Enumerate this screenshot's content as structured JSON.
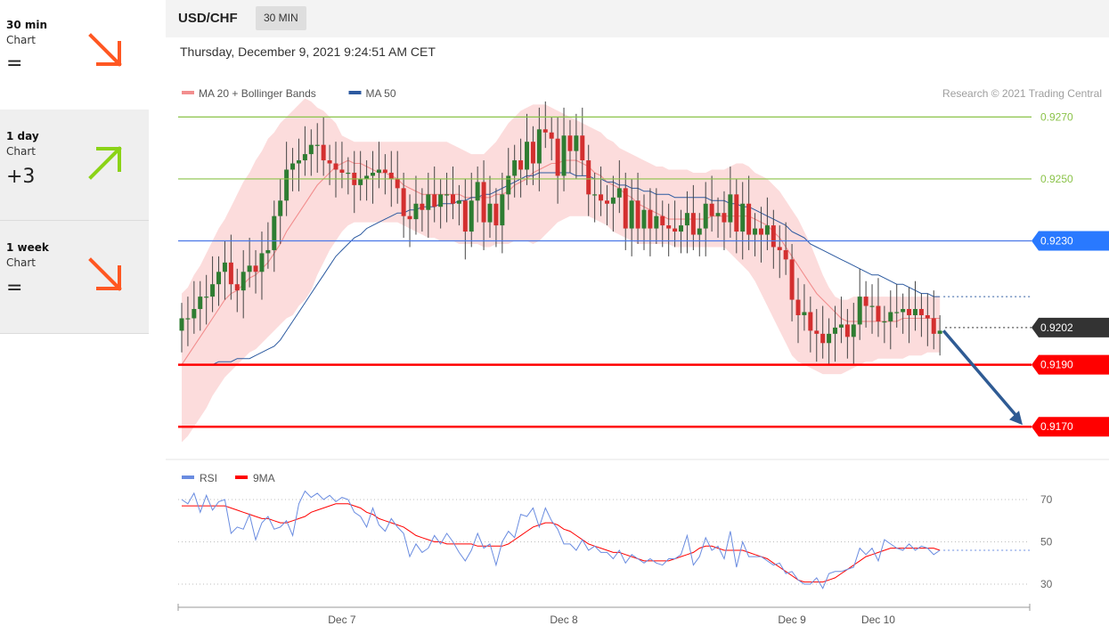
{
  "sidebar": {
    "items": [
      {
        "label": "30 min",
        "sub": "Chart",
        "score": "=",
        "direction": "down",
        "color": "#ff5722"
      },
      {
        "label": "1 day",
        "sub": "Chart",
        "score": "+3",
        "direction": "up",
        "color": "#8bd317"
      },
      {
        "label": "1 week",
        "sub": "Chart",
        "score": "=",
        "direction": "down",
        "color": "#ff5722"
      }
    ]
  },
  "header": {
    "symbol": "USD/CHF",
    "timeframe": "30 MIN"
  },
  "timestamp": "Thursday, December 9, 2021 9:24:51 AM CET",
  "chart_data": {
    "type": "candlestick",
    "legend": [
      {
        "label": "MA 20 + Bollinger Bands",
        "color": "#f28e8e"
      },
      {
        "label": "MA 50",
        "color": "#2c5aa0"
      }
    ],
    "credit": "Research © 2021 Trading Central",
    "ylim": [
      0.916,
      0.9277
    ],
    "x_ticks": [
      {
        "label": "Dec 7",
        "index": 26
      },
      {
        "label": "Dec 8",
        "index": 62
      },
      {
        "label": "Dec 9",
        "index": 99
      },
      {
        "label": "Dec 10",
        "index": 113
      }
    ],
    "levels": [
      {
        "value": 0.927,
        "label": "0.9270",
        "color": "#8bc34a",
        "style": "line"
      },
      {
        "value": 0.925,
        "label": "0.9250",
        "color": "#8bc34a",
        "style": "line"
      },
      {
        "value": 0.923,
        "label": "0.9230",
        "color": "#4a78e8",
        "style": "line",
        "badge_color": "#2979ff"
      },
      {
        "value": 0.9202,
        "label": "0.9202",
        "color": "#555555",
        "style": "current",
        "badge_color": "#333333"
      },
      {
        "value": 0.919,
        "label": "0.9190",
        "color": "#ff0000",
        "style": "support",
        "badge_color": "#ff0000"
      },
      {
        "value": 0.917,
        "label": "0.9170",
        "color": "#ff0000",
        "style": "support",
        "badge_color": "#ff0000"
      }
    ],
    "forecast_arrow": {
      "from_value": 0.9201,
      "to_value": 0.917,
      "color": "#2f5b94"
    },
    "closes": [
      0.9205,
      0.9205,
      0.9208,
      0.9212,
      0.9212,
      0.9216,
      0.922,
      0.9223,
      0.9216,
      0.9214,
      0.922,
      0.9222,
      0.922,
      0.9226,
      0.9227,
      0.9238,
      0.9243,
      0.9253,
      0.9255,
      0.9256,
      0.9258,
      0.9261,
      0.9261,
      0.9256,
      0.9255,
      0.9253,
      0.9252,
      0.9252,
      0.9248,
      0.925,
      0.9251,
      0.9252,
      0.9253,
      0.9252,
      0.925,
      0.9247,
      0.9238,
      0.9237,
      0.9242,
      0.924,
      0.9245,
      0.9241,
      0.9245,
      0.9245,
      0.9242,
      0.9243,
      0.9233,
      0.9243,
      0.9249,
      0.9236,
      0.9242,
      0.9235,
      0.9245,
      0.9251,
      0.9256,
      0.9253,
      0.9262,
      0.9255,
      0.9266,
      0.9265,
      0.9263,
      0.9251,
      0.9264,
      0.9259,
      0.9264,
      0.9256,
      0.9245,
      0.9245,
      0.9243,
      0.9242,
      0.9244,
      0.9247,
      0.9234,
      0.9243,
      0.9234,
      0.924,
      0.9234,
      0.9238,
      0.9235,
      0.9234,
      0.9233,
      0.9235,
      0.9239,
      0.9232,
      0.9234,
      0.9242,
      0.9238,
      0.9239,
      0.9236,
      0.9245,
      0.9233,
      0.9242,
      0.9232,
      0.9234,
      0.9232,
      0.9235,
      0.9228,
      0.9227,
      0.9224,
      0.9211,
      0.9206,
      0.9207,
      0.9201,
      0.92,
      0.9197,
      0.92,
      0.9202,
      0.9203,
      0.9199,
      0.9203,
      0.9212,
      0.9209,
      0.9209,
      0.9204,
      0.9204,
      0.9207,
      0.9207,
      0.9208,
      0.9206,
      0.9208,
      0.9206,
      0.9205,
      0.92,
      0.9201
    ],
    "ma20": [
      0.919,
      0.9193,
      0.9196,
      0.9199,
      0.9202,
      0.9205,
      0.9208,
      0.9211,
      0.9213,
      0.9214,
      0.9216,
      0.9218,
      0.9219,
      0.9221,
      0.9223,
      0.9226,
      0.9229,
      0.9233,
      0.9236,
      0.9239,
      0.9242,
      0.9245,
      0.9248,
      0.925,
      0.9252,
      0.9254,
      0.9255,
      0.9256,
      0.9255,
      0.9255,
      0.9254,
      0.9253,
      0.9252,
      0.9252,
      0.9251,
      0.925,
      0.9248,
      0.9247,
      0.9246,
      0.9245,
      0.9245,
      0.9245,
      0.9245,
      0.9245,
      0.9245,
      0.9245,
      0.9244,
      0.9244,
      0.9244,
      0.9244,
      0.9244,
      0.9245,
      0.9245,
      0.9246,
      0.9248,
      0.9249,
      0.925,
      0.9252,
      0.9253,
      0.9254,
      0.9255,
      0.9255,
      0.9256,
      0.9256,
      0.9256,
      0.9255,
      0.9254,
      0.9252,
      0.9251,
      0.9249,
      0.9248,
      0.9247,
      0.9245,
      0.9244,
      0.9242,
      0.9241,
      0.924,
      0.9239,
      0.9238,
      0.9237,
      0.9237,
      0.9237,
      0.9237,
      0.9237,
      0.9237,
      0.9237,
      0.9238,
      0.9238,
      0.9238,
      0.9238,
      0.9238,
      0.9238,
      0.9238,
      0.9237,
      0.9236,
      0.9235,
      0.9233,
      0.9231,
      0.9228,
      0.9225,
      0.9222,
      0.9219,
      0.9216,
      0.9213,
      0.9211,
      0.9209,
      0.9207,
      0.9205,
      0.9204,
      0.9204,
      0.9204,
      0.9204,
      0.9204,
      0.9204,
      0.9204,
      0.9204,
      0.9204,
      0.9205,
      0.9205,
      0.9205,
      0.9205,
      0.9205,
      0.9205,
      0.9205
    ],
    "ma50": [
      0.919,
      0.919,
      0.919,
      0.919,
      0.919,
      0.919,
      0.9191,
      0.9191,
      0.9191,
      0.9192,
      0.9192,
      0.9192,
      0.9193,
      0.9194,
      0.9195,
      0.9196,
      0.9198,
      0.9201,
      0.9204,
      0.9207,
      0.921,
      0.9213,
      0.9216,
      0.9219,
      0.9222,
      0.9225,
      0.9227,
      0.9229,
      0.9231,
      0.9232,
      0.9234,
      0.9235,
      0.9236,
      0.9237,
      0.9238,
      0.9239,
      0.9239,
      0.924,
      0.924,
      0.9241,
      0.9241,
      0.9241,
      0.9242,
      0.9242,
      0.9242,
      0.9243,
      0.9243,
      0.9244,
      0.9244,
      0.9245,
      0.9245,
      0.9246,
      0.9247,
      0.9248,
      0.9249,
      0.925,
      0.9251,
      0.9251,
      0.9252,
      0.9252,
      0.9252,
      0.9252,
      0.9252,
      0.9252,
      0.9251,
      0.9251,
      0.9251,
      0.925,
      0.925,
      0.9249,
      0.9249,
      0.9248,
      0.9248,
      0.9247,
      0.9247,
      0.9246,
      0.9246,
      0.9245,
      0.9245,
      0.9245,
      0.9244,
      0.9244,
      0.9244,
      0.9244,
      0.9244,
      0.9244,
      0.9243,
      0.9243,
      0.9243,
      0.9242,
      0.9242,
      0.9241,
      0.9241,
      0.924,
      0.9239,
      0.9238,
      0.9237,
      0.9236,
      0.9235,
      0.9233,
      0.9232,
      0.9231,
      0.9229,
      0.9228,
      0.9227,
      0.9226,
      0.9225,
      0.9224,
      0.9223,
      0.9222,
      0.9221,
      0.922,
      0.9219,
      0.9219,
      0.9218,
      0.9217,
      0.9216,
      0.9216,
      0.9215,
      0.9214,
      0.9213,
      0.9213,
      0.9212,
      0.9212
    ],
    "bb_upper": [
      0.9213,
      0.9215,
      0.9219,
      0.9222,
      0.9226,
      0.923,
      0.9234,
      0.9237,
      0.9241,
      0.9245,
      0.9249,
      0.9252,
      0.9256,
      0.9259,
      0.9263,
      0.9265,
      0.9268,
      0.927,
      0.9272,
      0.9274,
      0.9276,
      0.9275,
      0.9273,
      0.9272,
      0.927,
      0.9268,
      0.9264,
      0.9263,
      0.9262,
      0.9262,
      0.9262,
      0.9262,
      0.9262,
      0.9262,
      0.9262,
      0.9262,
      0.9262,
      0.9262,
      0.9262,
      0.9262,
      0.9262,
      0.9262,
      0.9262,
      0.9262,
      0.9261,
      0.926,
      0.9259,
      0.9258,
      0.9258,
      0.9258,
      0.926,
      0.9262,
      0.9265,
      0.9268,
      0.927,
      0.9272,
      0.9273,
      0.9274,
      0.9274,
      0.9274,
      0.9273,
      0.9272,
      0.9271,
      0.927,
      0.9269,
      0.9268,
      0.9267,
      0.9266,
      0.9265,
      0.9263,
      0.9262,
      0.926,
      0.9259,
      0.9258,
      0.9257,
      0.9256,
      0.9255,
      0.9254,
      0.9254,
      0.9253,
      0.9253,
      0.9253,
      0.9253,
      0.9252,
      0.9252,
      0.9252,
      0.9253,
      0.9253,
      0.9253,
      0.9254,
      0.9255,
      0.9255,
      0.9254,
      0.9252,
      0.9251,
      0.925,
      0.9248,
      0.9246,
      0.9243,
      0.924,
      0.9237,
      0.9233,
      0.9229,
      0.9224,
      0.9219,
      0.9215,
      0.9212,
      0.9211,
      0.9211,
      0.9212,
      0.9212,
      0.9212,
      0.9212,
      0.9212,
      0.9212,
      0.9212,
      0.9212,
      0.9212,
      0.9212,
      0.9212,
      0.9212,
      0.9212,
      0.9212,
      0.9212
    ],
    "bb_lower": [
      0.9165,
      0.9167,
      0.917,
      0.9173,
      0.9176,
      0.918,
      0.9183,
      0.9186,
      0.9188,
      0.919,
      0.9192,
      0.9194,
      0.9195,
      0.9197,
      0.9199,
      0.9201,
      0.9203,
      0.9205,
      0.9206,
      0.9209,
      0.9211,
      0.9214,
      0.9219,
      0.9223,
      0.9227,
      0.923,
      0.9233,
      0.9235,
      0.9236,
      0.9236,
      0.9236,
      0.9236,
      0.9236,
      0.9236,
      0.9236,
      0.9236,
      0.9235,
      0.9234,
      0.9233,
      0.9232,
      0.9231,
      0.9231,
      0.923,
      0.923,
      0.923,
      0.9229,
      0.9229,
      0.9229,
      0.9229,
      0.9228,
      0.9228,
      0.9229,
      0.9229,
      0.9229,
      0.923,
      0.923,
      0.923,
      0.9229,
      0.923,
      0.9232,
      0.9234,
      0.9236,
      0.9237,
      0.9238,
      0.9238,
      0.9238,
      0.9238,
      0.9237,
      0.9236,
      0.9235,
      0.9233,
      0.9232,
      0.9231,
      0.923,
      0.9229,
      0.9229,
      0.9229,
      0.9229,
      0.9229,
      0.9229,
      0.9228,
      0.9228,
      0.9228,
      0.9228,
      0.9228,
      0.9228,
      0.9228,
      0.9228,
      0.9228,
      0.9226,
      0.9224,
      0.9222,
      0.922,
      0.9217,
      0.9213,
      0.9209,
      0.9205,
      0.9201,
      0.9197,
      0.9193,
      0.9191,
      0.919,
      0.9189,
      0.9188,
      0.9187,
      0.9187,
      0.9187,
      0.9187,
      0.9188,
      0.9189,
      0.919,
      0.9191,
      0.9191,
      0.9192,
      0.9192,
      0.9192,
      0.9192,
      0.9192,
      0.9193,
      0.9193,
      0.9193,
      0.9194,
      0.9194,
      0.9194
    ],
    "rsi": {
      "legend": [
        {
          "label": "RSI",
          "color": "#6a8ce0"
        },
        {
          "label": "9MA",
          "color": "#ff0000"
        }
      ],
      "ylim": [
        22,
        78
      ],
      "y_ticks": [
        70,
        50,
        30
      ],
      "values": [
        70,
        68,
        73,
        64,
        72,
        65,
        69,
        70,
        54,
        57,
        56,
        63,
        51,
        59,
        62,
        56,
        57,
        60,
        53,
        68,
        74,
        71,
        73,
        70,
        72,
        69,
        71,
        70,
        64,
        62,
        57,
        66,
        58,
        55,
        61,
        57,
        54,
        43,
        49,
        45,
        47,
        53,
        49,
        54,
        50,
        45,
        41,
        46,
        54,
        47,
        49,
        39,
        50,
        55,
        52,
        63,
        62,
        66,
        57,
        66,
        60,
        56,
        49,
        49,
        46,
        51,
        46,
        48,
        45,
        45,
        42,
        46,
        40,
        44,
        42,
        40,
        42,
        40,
        39,
        42,
        42,
        44,
        53,
        39,
        43,
        52,
        46,
        48,
        42,
        55,
        38,
        50,
        43,
        43,
        43,
        41,
        39,
        40,
        35,
        36,
        32,
        30,
        30,
        33,
        28,
        35,
        36,
        36,
        37,
        38,
        47,
        44,
        47,
        41,
        51,
        49,
        47,
        46,
        49,
        46,
        48,
        47,
        44,
        46
      ],
      "ma9": [
        67,
        67,
        67,
        67,
        67,
        67,
        67,
        67,
        66,
        65,
        64,
        63,
        62,
        61,
        61,
        60,
        59,
        59,
        60,
        61,
        62,
        64,
        65,
        66,
        67,
        68,
        68,
        68,
        67,
        66,
        64,
        63,
        61,
        60,
        59,
        58,
        57,
        55,
        53,
        52,
        51,
        50,
        50,
        49,
        49,
        49,
        49,
        49,
        48,
        48,
        48,
        48,
        48,
        49,
        51,
        53,
        55,
        57,
        58,
        59,
        59,
        58,
        56,
        55,
        53,
        51,
        49,
        48,
        47,
        46,
        45,
        45,
        44,
        43,
        42,
        41,
        41,
        41,
        41,
        41,
        42,
        43,
        44,
        45,
        47,
        48,
        48,
        47,
        46,
        46,
        46,
        46,
        45,
        44,
        43,
        42,
        40,
        38,
        36,
        34,
        32,
        31,
        31,
        31,
        31,
        32,
        33,
        35,
        37,
        39,
        41,
        43,
        44,
        45,
        46,
        47,
        47,
        47,
        47,
        47,
        47,
        47,
        47,
        46
      ]
    }
  }
}
